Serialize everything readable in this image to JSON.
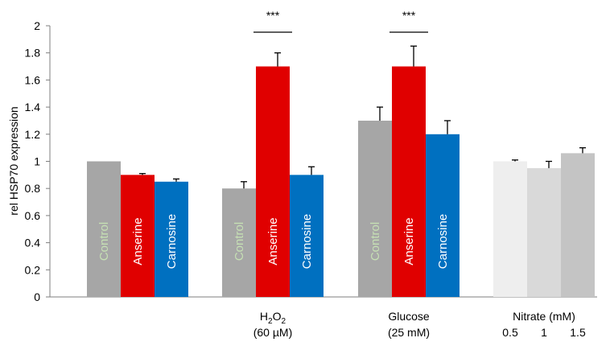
{
  "chart_data": {
    "type": "bar",
    "ylabel": "rel HSP70 expression",
    "ylim": [
      0,
      2
    ],
    "yticks": [
      0,
      0.2,
      0.4,
      0.6,
      0.8,
      1,
      1.2,
      1.4,
      1.6,
      1.8,
      2
    ],
    "grid": false,
    "colors": {
      "control": "#a6a6a6",
      "anserine": "#e00000",
      "carnosine": "#0070c0",
      "control_label": "#c6e0b4",
      "bar_label": "#ffffff",
      "error": "#000000",
      "nitrate_05": "#eeeeee",
      "nitrate_1": "#d9d9d9",
      "nitrate_15": "#c4c4c4"
    },
    "groups": [
      {
        "label_main": "",
        "label_sub": "",
        "label_tail": "",
        "label_line2": "",
        "bars": [
          {
            "label": "Control",
            "value": 1.0,
            "error": 0,
            "color": "control",
            "label_color": "control_label"
          },
          {
            "label": "Anserine",
            "value": 0.9,
            "error": 0.01,
            "color": "anserine",
            "label_color": "bar_label"
          },
          {
            "label": "Carnosine",
            "value": 0.85,
            "error": 0.02,
            "color": "carnosine",
            "label_color": "bar_label"
          }
        ]
      },
      {
        "label_main": "H",
        "label_sub": "2",
        "label_tail": "O",
        "label_tail_sub": "2",
        "label_line2": "(60 µM)",
        "significance": "***",
        "bars": [
          {
            "label": "Control",
            "value": 0.8,
            "error": 0.05,
            "color": "control",
            "label_color": "control_label"
          },
          {
            "label": "Anserine",
            "value": 1.7,
            "error": 0.1,
            "color": "anserine",
            "label_color": "bar_label"
          },
          {
            "label": "Carnosine",
            "value": 0.9,
            "error": 0.06,
            "color": "carnosine",
            "label_color": "bar_label"
          }
        ]
      },
      {
        "label_main": "Glucose",
        "label_line2": "(25 mM)",
        "significance": "***",
        "bars": [
          {
            "label": "Control",
            "value": 1.3,
            "error": 0.1,
            "color": "control",
            "label_color": "control_label"
          },
          {
            "label": "Anserine",
            "value": 1.7,
            "error": 0.15,
            "color": "anserine",
            "label_color": "bar_label"
          },
          {
            "label": "Carnosine",
            "value": 1.2,
            "error": 0.1,
            "color": "carnosine",
            "label_color": "bar_label"
          }
        ]
      },
      {
        "label_main": "Nitrate (mM)",
        "label_line2": "",
        "sub_ticks": [
          "0.5",
          "1",
          "1.5"
        ],
        "bars": [
          {
            "label": "",
            "value": 1.0,
            "error": 0.01,
            "color": "nitrate_05",
            "label_color": "bar_label"
          },
          {
            "label": "",
            "value": 0.95,
            "error": 0.05,
            "color": "nitrate_1",
            "label_color": "bar_label"
          },
          {
            "label": "",
            "value": 1.06,
            "error": 0.04,
            "color": "nitrate_15",
            "label_color": "bar_label"
          }
        ]
      }
    ]
  }
}
